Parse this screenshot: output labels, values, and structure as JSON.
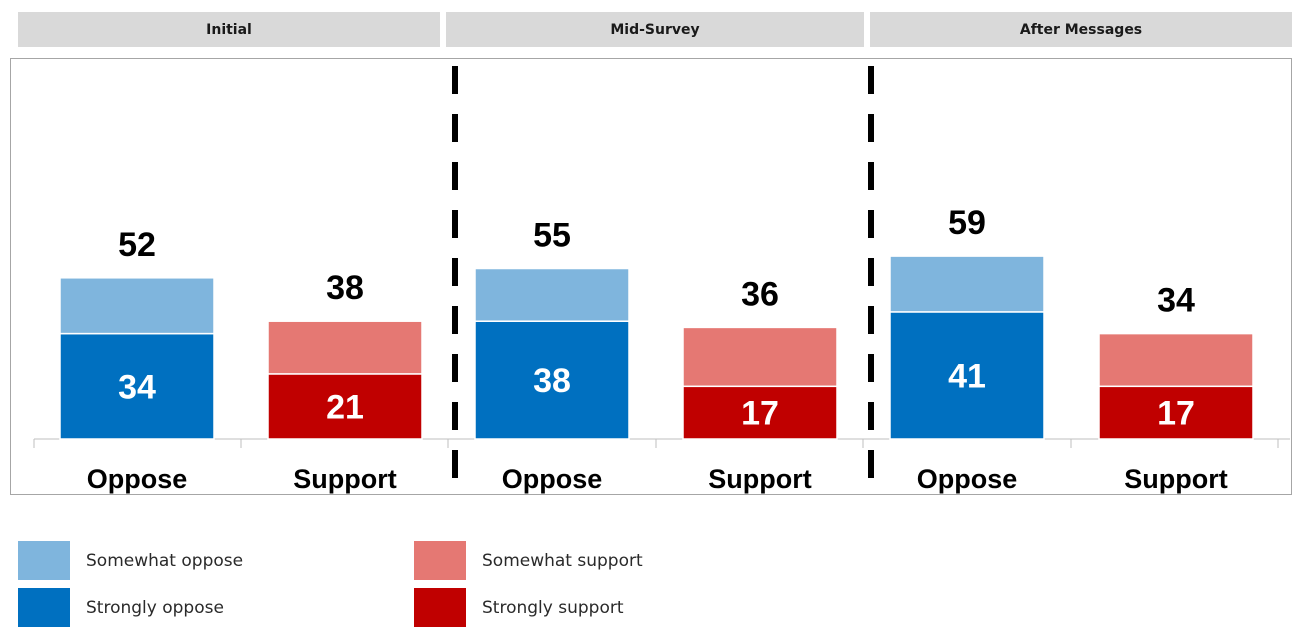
{
  "panels": [
    {
      "title": "Initial"
    },
    {
      "title": "Mid-Survey"
    },
    {
      "title": "After Messages"
    }
  ],
  "legend": [
    {
      "label": "Somewhat oppose",
      "color": "#7fb5dd"
    },
    {
      "label": "Strongly oppose",
      "color": "#0070c0"
    },
    {
      "label": "Somewhat support",
      "color": "#e57873"
    },
    {
      "label": "Strongly support",
      "color": "#c00000"
    }
  ],
  "chart_data": {
    "type": "bar",
    "stacked": true,
    "facets": [
      "Initial",
      "Mid-Survey",
      "After Messages"
    ],
    "categories": [
      "Oppose",
      "Support",
      "Oppose",
      "Support",
      "Oppose",
      "Support"
    ],
    "totals": [
      52,
      38,
      55,
      36,
      59,
      34
    ],
    "series": [
      {
        "name": "Strongly oppose",
        "color": "#0070c0",
        "values": [
          34,
          null,
          38,
          null,
          41,
          null
        ]
      },
      {
        "name": "Somewhat oppose",
        "color": "#7fb5dd",
        "values": [
          18,
          null,
          17,
          null,
          18,
          null
        ]
      },
      {
        "name": "Strongly support",
        "color": "#c00000",
        "values": [
          null,
          21,
          null,
          17,
          null,
          17
        ]
      },
      {
        "name": "Somewhat support",
        "color": "#e57873",
        "values": [
          null,
          17,
          null,
          19,
          null,
          17
        ]
      }
    ],
    "labels": {
      "segment": [
        34,
        21,
        38,
        17,
        41,
        17
      ],
      "total": [
        52,
        38,
        55,
        36,
        59,
        34
      ]
    },
    "grid": false
  }
}
